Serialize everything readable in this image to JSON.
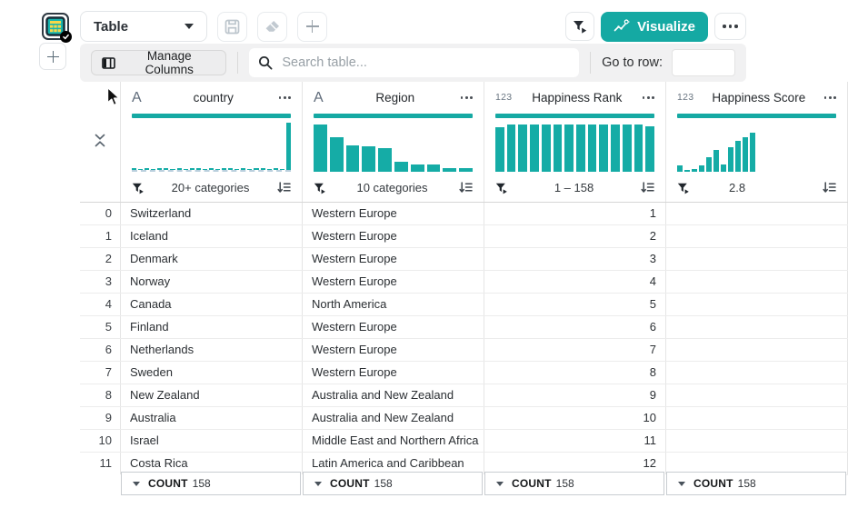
{
  "colors": {
    "accent": "#15a9a3",
    "histogram_bar": "#15aca6"
  },
  "sidebar": {
    "active_sheet_name": "table-sheet",
    "active_sheet_status": "selected"
  },
  "toolbar": {
    "view_select_value": "Table",
    "visualize_label": "Visualize"
  },
  "subtoolbar": {
    "manage_columns_label": "Manage Columns",
    "search_placeholder": "Search table...",
    "search_value": "",
    "goto_row_label": "Go to row:",
    "goto_row_value": ""
  },
  "table": {
    "columns": [
      {
        "name": "country",
        "type_badge": "A",
        "caption": "20+ categories",
        "histogram": {
          "style": "sparse-dashed",
          "values": [
            0.03,
            0.02,
            0.03,
            0.02,
            0.03,
            0.03,
            0.02,
            0.03,
            0.02,
            0.03,
            0.03,
            0.02,
            0.03,
            0.02,
            0.03,
            0.03,
            0.02,
            0.03,
            0.02,
            0.03,
            0.03,
            0.02,
            0.03,
            0.02,
            1.0
          ]
        }
      },
      {
        "name": "Region",
        "type_badge": "A",
        "caption": "10 categories",
        "histogram": {
          "style": "bars",
          "values": [
            1.0,
            0.74,
            0.56,
            0.54,
            0.5,
            0.22,
            0.15,
            0.15,
            0.07,
            0.07
          ]
        }
      },
      {
        "name": "Happiness Rank",
        "type_badge": "123",
        "caption": "1 – 158",
        "histogram": {
          "style": "bars",
          "values": [
            0.94,
            1,
            1,
            1,
            1,
            1,
            1,
            1,
            1,
            1,
            1,
            1,
            1,
            0.97
          ]
        }
      },
      {
        "name": "Happiness Score",
        "type_badge": "123",
        "caption": "2.8",
        "caption_align": "left",
        "histogram": {
          "style": "bars-fixed",
          "values": [
            0.13,
            0.04,
            0.05,
            0.13,
            0.3,
            0.46,
            0.15,
            0.52,
            0.66,
            0.74,
            0.82
          ]
        }
      }
    ],
    "column_alignments": [
      "left",
      "left",
      "right",
      "right"
    ],
    "rows": [
      {
        "n": "0",
        "cells": [
          "Switzerland",
          "Western Europe",
          "1",
          ""
        ]
      },
      {
        "n": "1",
        "cells": [
          "Iceland",
          "Western Europe",
          "2",
          ""
        ]
      },
      {
        "n": "2",
        "cells": [
          "Denmark",
          "Western Europe",
          "3",
          ""
        ]
      },
      {
        "n": "3",
        "cells": [
          "Norway",
          "Western Europe",
          "4",
          ""
        ]
      },
      {
        "n": "4",
        "cells": [
          "Canada",
          "North America",
          "5",
          ""
        ]
      },
      {
        "n": "5",
        "cells": [
          "Finland",
          "Western Europe",
          "6",
          ""
        ]
      },
      {
        "n": "6",
        "cells": [
          "Netherlands",
          "Western Europe",
          "7",
          ""
        ]
      },
      {
        "n": "7",
        "cells": [
          "Sweden",
          "Western Europe",
          "8",
          ""
        ]
      },
      {
        "n": "8",
        "cells": [
          "New Zealand",
          "Australia and New Zealand",
          "9",
          ""
        ]
      },
      {
        "n": "9",
        "cells": [
          "Australia",
          "Australia and New Zealand",
          "10",
          ""
        ]
      },
      {
        "n": "10",
        "cells": [
          "Israel",
          "Middle East and Northern Africa",
          "11",
          ""
        ]
      },
      {
        "n": "11",
        "cells": [
          "Costa Rica",
          "Latin America and Caribbean",
          "12",
          ""
        ]
      }
    ],
    "footers": [
      {
        "label": "COUNT",
        "value": "158"
      },
      {
        "label": "COUNT",
        "value": "158"
      },
      {
        "label": "COUNT",
        "value": "158"
      },
      {
        "label": "COUNT",
        "value": "158"
      }
    ]
  }
}
